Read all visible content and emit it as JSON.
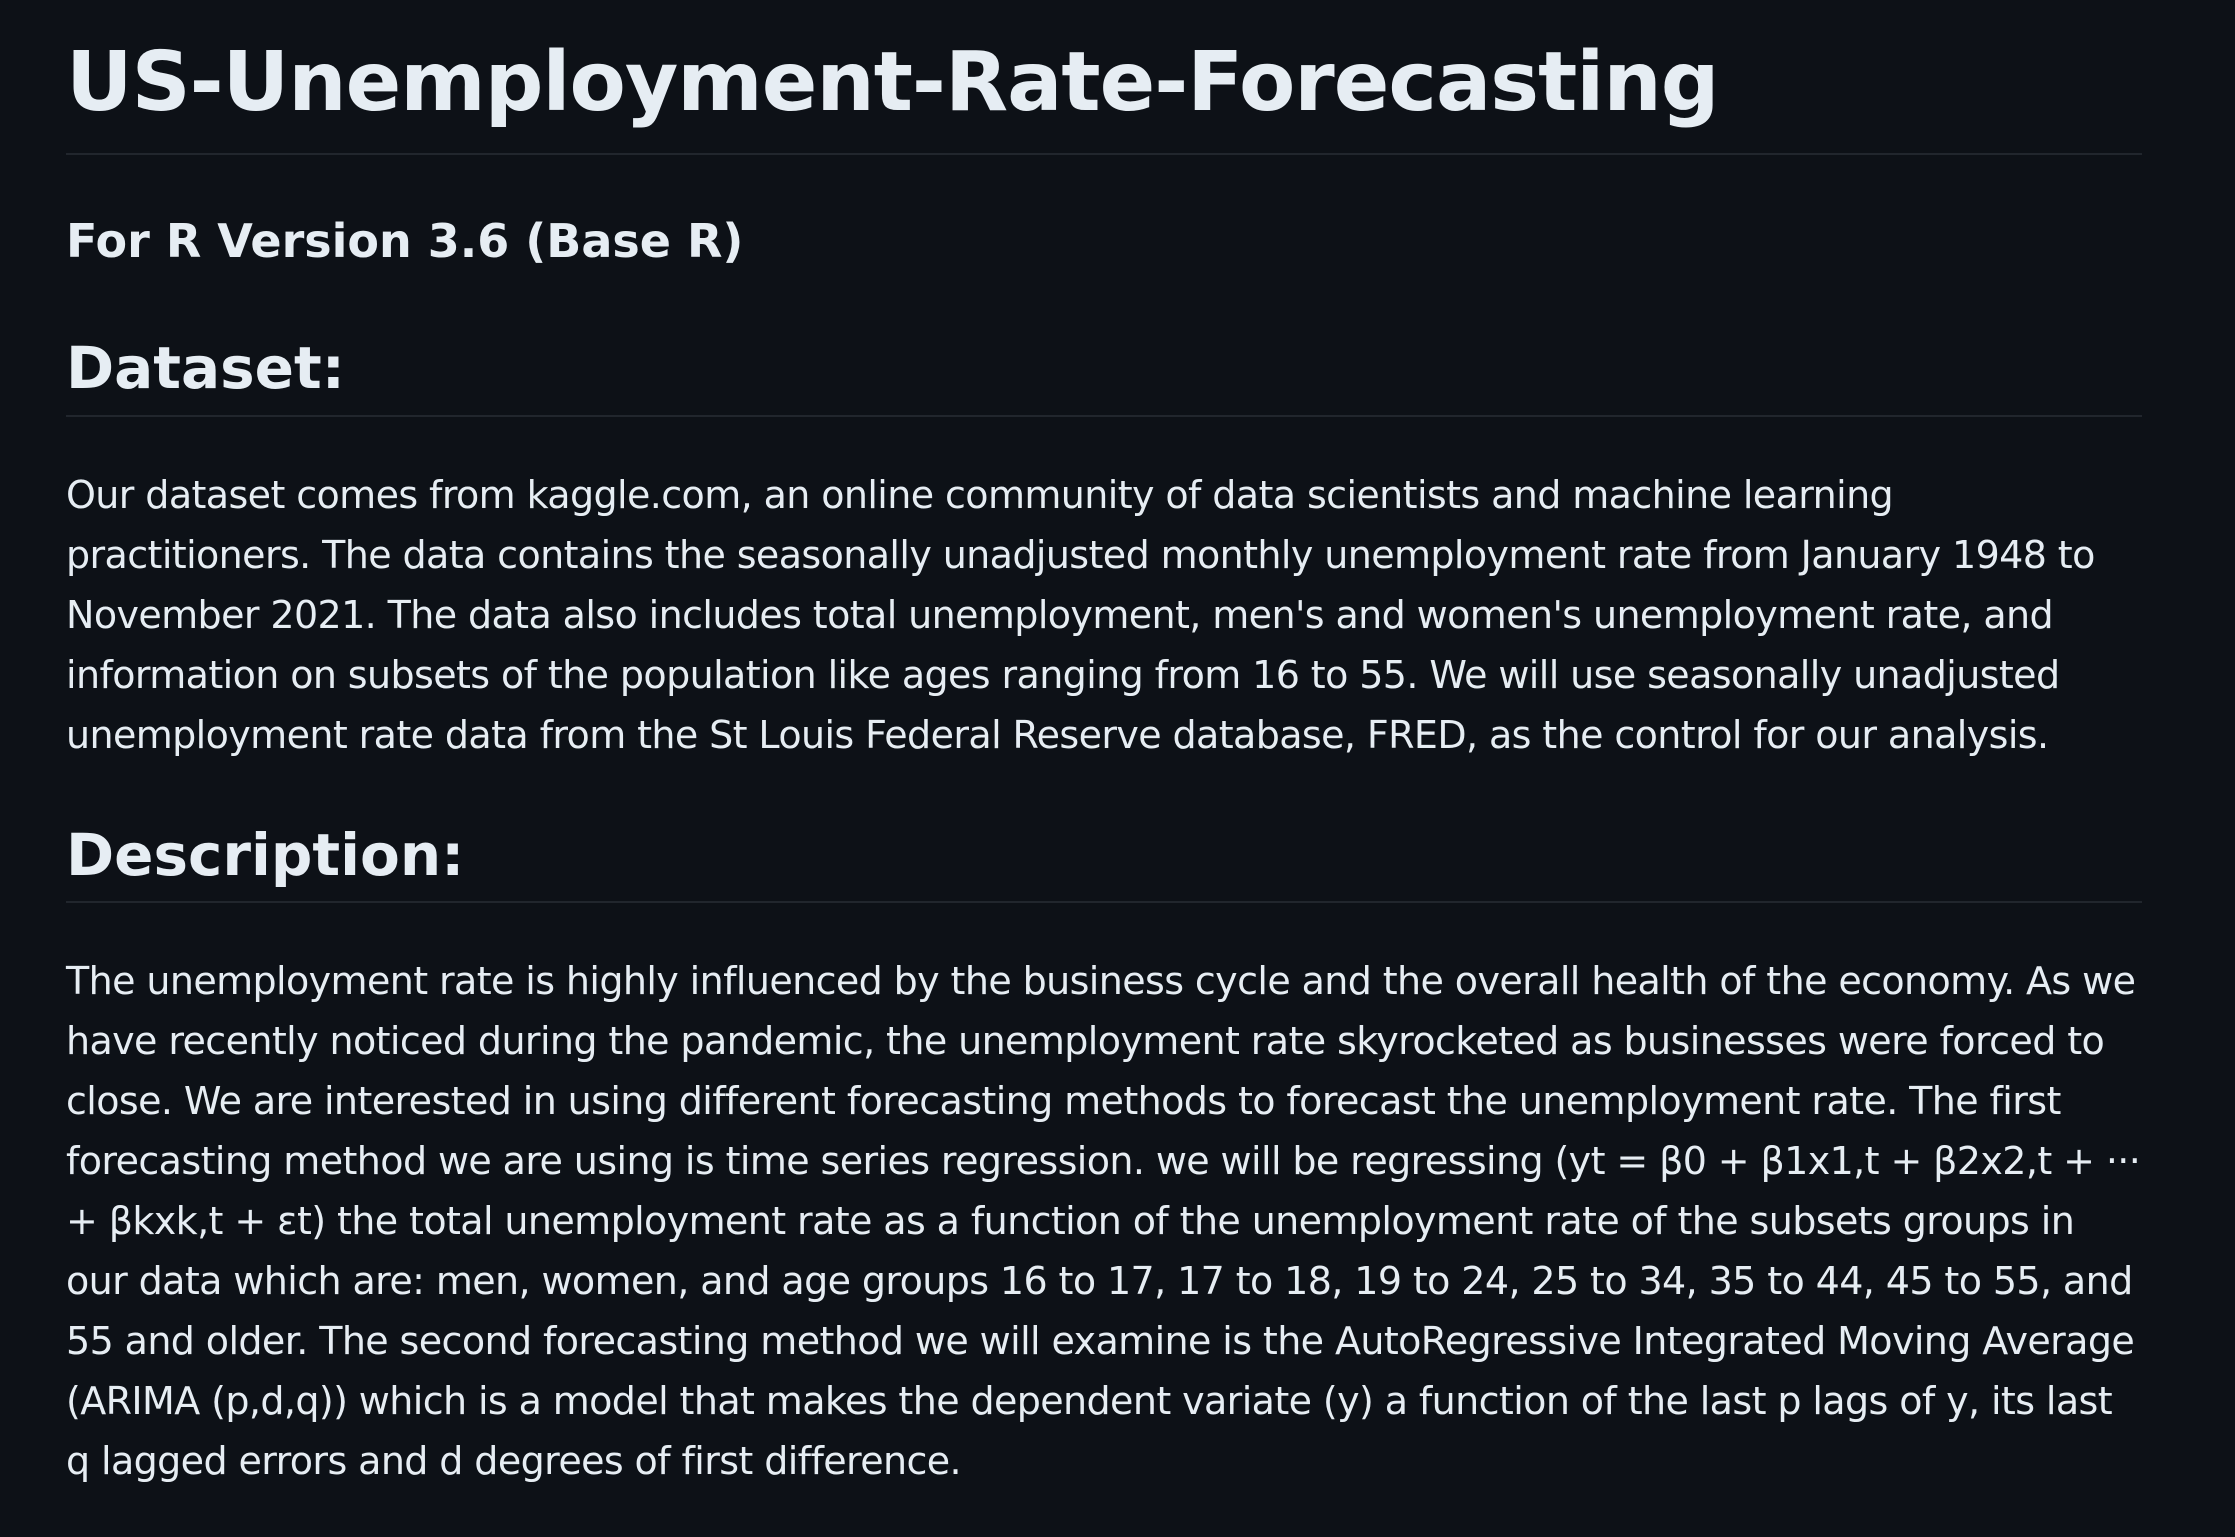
{
  "readme": {
    "title": "US-Unemployment-Rate-Forecasting",
    "version_heading": "For R Version 3.6 (Base R)",
    "dataset": {
      "heading": "Dataset:",
      "body": "Our dataset comes from kaggle.com, an online community of data scientists and machine learning practitioners. The data contains the seasonally unadjusted monthly unemployment rate from January 1948 to November 2021. The data also includes total unemployment, men's and women's unemployment rate, and information on subsets of the population like ages ranging from 16 to 55. We will use seasonally unadjusted unemployment rate data from the St Louis Federal Reserve database, FRED, as the control for our analysis."
    },
    "description": {
      "heading": "Description:",
      "body": "The unemployment rate is highly influenced by the business cycle and the overall health of the economy. As we have recently noticed during the pandemic, the unemployment rate skyrocketed as businesses were forced to close. We are interested in using different forecasting methods to forecast the unemployment rate. The first forecasting method we are using is time series regression. we will be regressing (yt = β0 + β1x1,t + β2x2,t + ··· + βkxk,t + εt) the total unemployment rate as a function of the unemployment rate of the subsets groups in our data which are: men, women, and age groups 16 to 17, 17 to 18, 19 to 24, 25 to 34, 35 to 44, 45 to 55, and 55 and older. The second forecasting method we will examine is the AutoRegressive Integrated Moving Average (ARIMA (p,d,q)) which is a model that makes the dependent variate (y) a function of the last p lags of y, its last q lagged errors and d degrees of first difference."
    }
  },
  "colors": {
    "background": "#0d1117",
    "text": "#e6edf3",
    "divider": "#21262d"
  }
}
